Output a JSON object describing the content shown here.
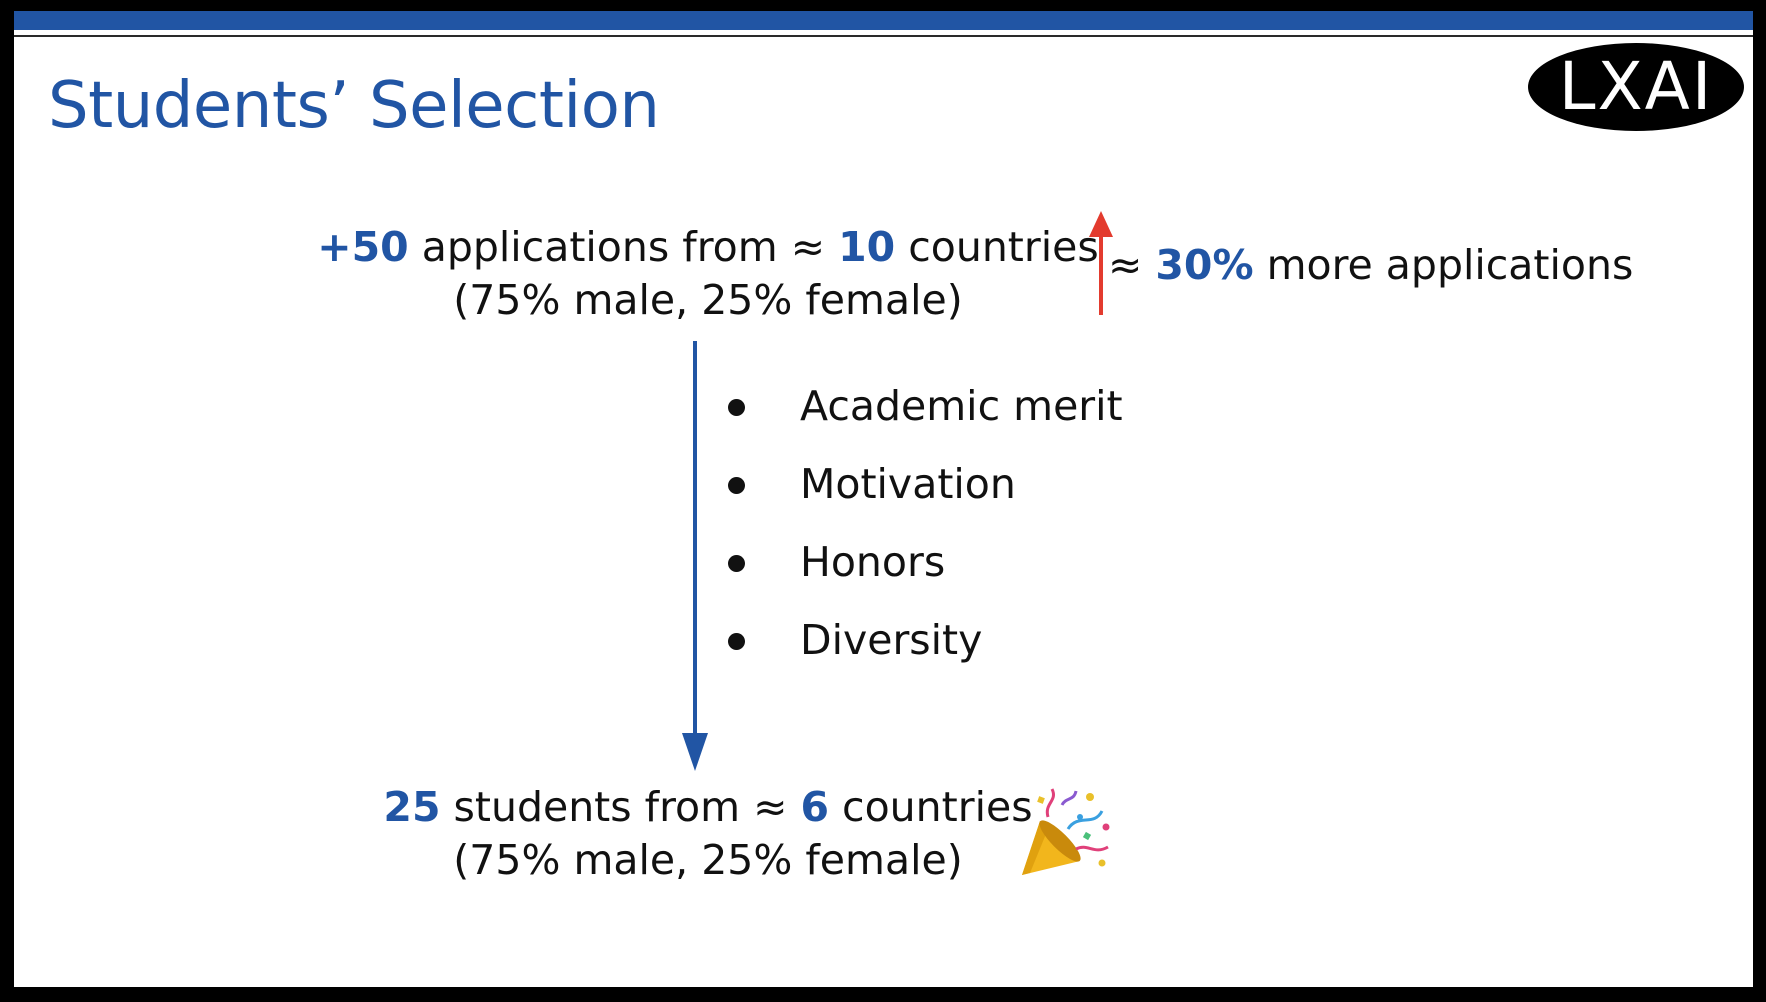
{
  "slide": {
    "title": "Students’ Selection",
    "logo": {
      "text": "LXAI",
      "icon": "lxai-logo"
    },
    "applications": {
      "count": "+50",
      "middle": " applications from ≈ ",
      "countries": "10",
      "end": " countries",
      "split": "(75% male, 25% female)"
    },
    "increase": {
      "icon": "up-arrow-icon",
      "prefix": "≈ ",
      "value": "30%",
      "suffix": " more applications"
    },
    "criteria": [
      "Academic merit",
      "Motivation",
      "Honors",
      "Diversity"
    ],
    "selected": {
      "count": "25",
      "middle": " students from ≈ ",
      "countries": "6",
      "end": " countries",
      "split": "(75% male, 25% female)",
      "icon": "party-popper-icon"
    }
  },
  "colors": {
    "accent": "#2155a4",
    "arrow_up": "#e33b2e",
    "text": "#111111",
    "frame": "#000000"
  }
}
